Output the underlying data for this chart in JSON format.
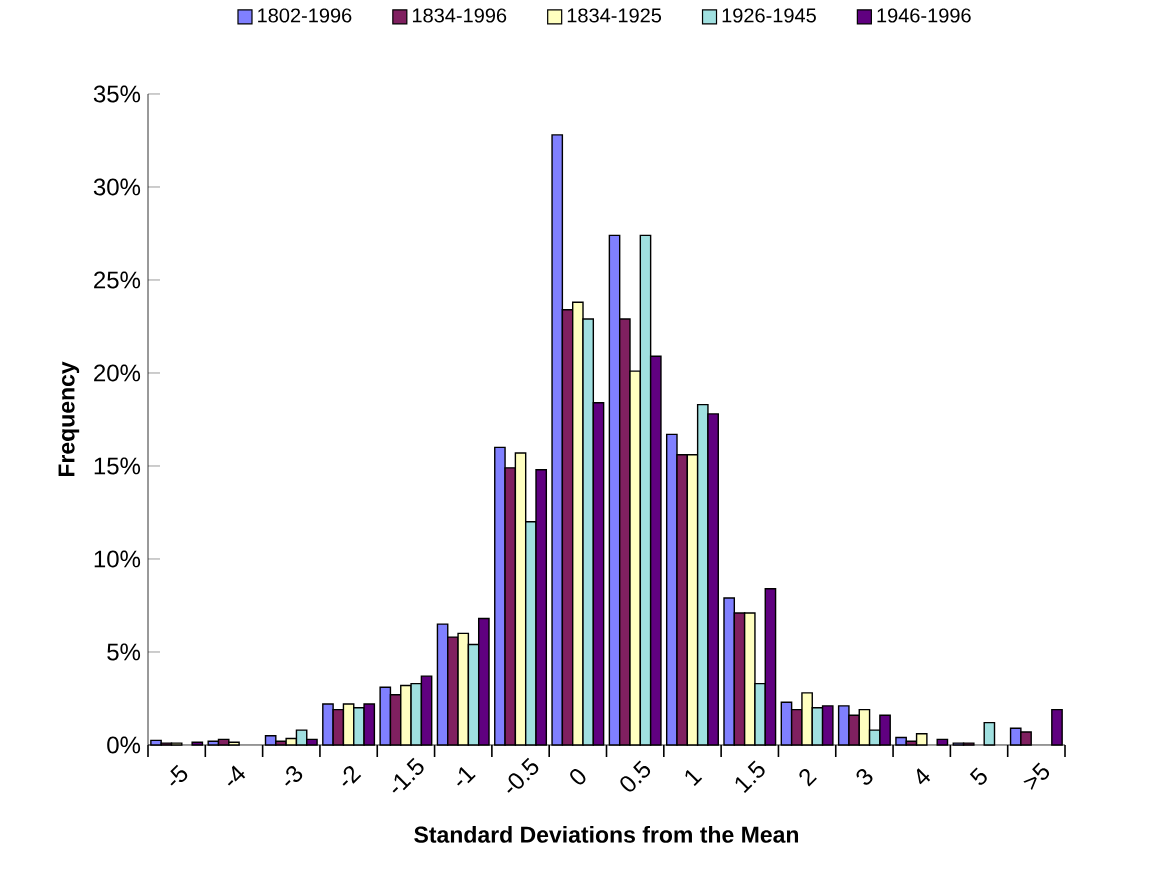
{
  "chart_data": {
    "type": "bar",
    "xlabel": "Standard Deviations from the Mean",
    "ylabel": "Frequency",
    "categories": [
      "-5",
      "-4",
      "-3",
      "-2",
      "-1.5",
      "-1",
      "-0.5",
      "0",
      "0.5",
      "1",
      "1.5",
      "2",
      "3",
      "4",
      "5",
      ">5"
    ],
    "series": [
      {
        "name": "1802-1996",
        "color": "#8080ff",
        "values": [
          0.25,
          0.2,
          0.5,
          2.2,
          3.1,
          6.5,
          16.0,
          32.8,
          27.4,
          16.7,
          7.9,
          2.3,
          2.1,
          0.4,
          0.1,
          0.9
        ]
      },
      {
        "name": "1834-1996",
        "color": "#802060",
        "values": [
          0.1,
          0.3,
          0.2,
          1.9,
          2.7,
          5.8,
          14.9,
          23.4,
          22.9,
          15.6,
          7.1,
          1.9,
          1.6,
          0.2,
          0.1,
          0.7
        ]
      },
      {
        "name": "1834-1925",
        "color": "#ffffc0",
        "values": [
          0.1,
          0.15,
          0.35,
          2.2,
          3.2,
          6.0,
          15.7,
          23.8,
          20.1,
          15.6,
          7.1,
          2.8,
          1.9,
          0.6,
          null,
          null
        ]
      },
      {
        "name": "1926-1945",
        "color": "#a0e0e0",
        "values": [
          null,
          null,
          0.8,
          2.0,
          3.3,
          5.4,
          12.0,
          22.9,
          27.4,
          18.3,
          3.3,
          2.0,
          0.8,
          null,
          1.2,
          null
        ]
      },
      {
        "name": "1946-1996",
        "color": "#600080",
        "values": [
          0.15,
          null,
          0.3,
          2.2,
          3.7,
          6.8,
          14.8,
          18.4,
          20.9,
          17.8,
          8.4,
          2.1,
          1.6,
          0.3,
          null,
          1.9
        ]
      }
    ],
    "ylim": [
      0,
      35
    ],
    "yticks": [
      {
        "value": 0,
        "label": "0%"
      },
      {
        "value": 5,
        "label": "5%"
      },
      {
        "value": 10,
        "label": "10%"
      },
      {
        "value": 15,
        "label": "15%"
      },
      {
        "value": 20,
        "label": "20%"
      },
      {
        "value": 25,
        "label": "25%"
      },
      {
        "value": 30,
        "label": "30%"
      },
      {
        "value": 35,
        "label": "35%"
      }
    ],
    "grid": false,
    "legend": "top"
  }
}
